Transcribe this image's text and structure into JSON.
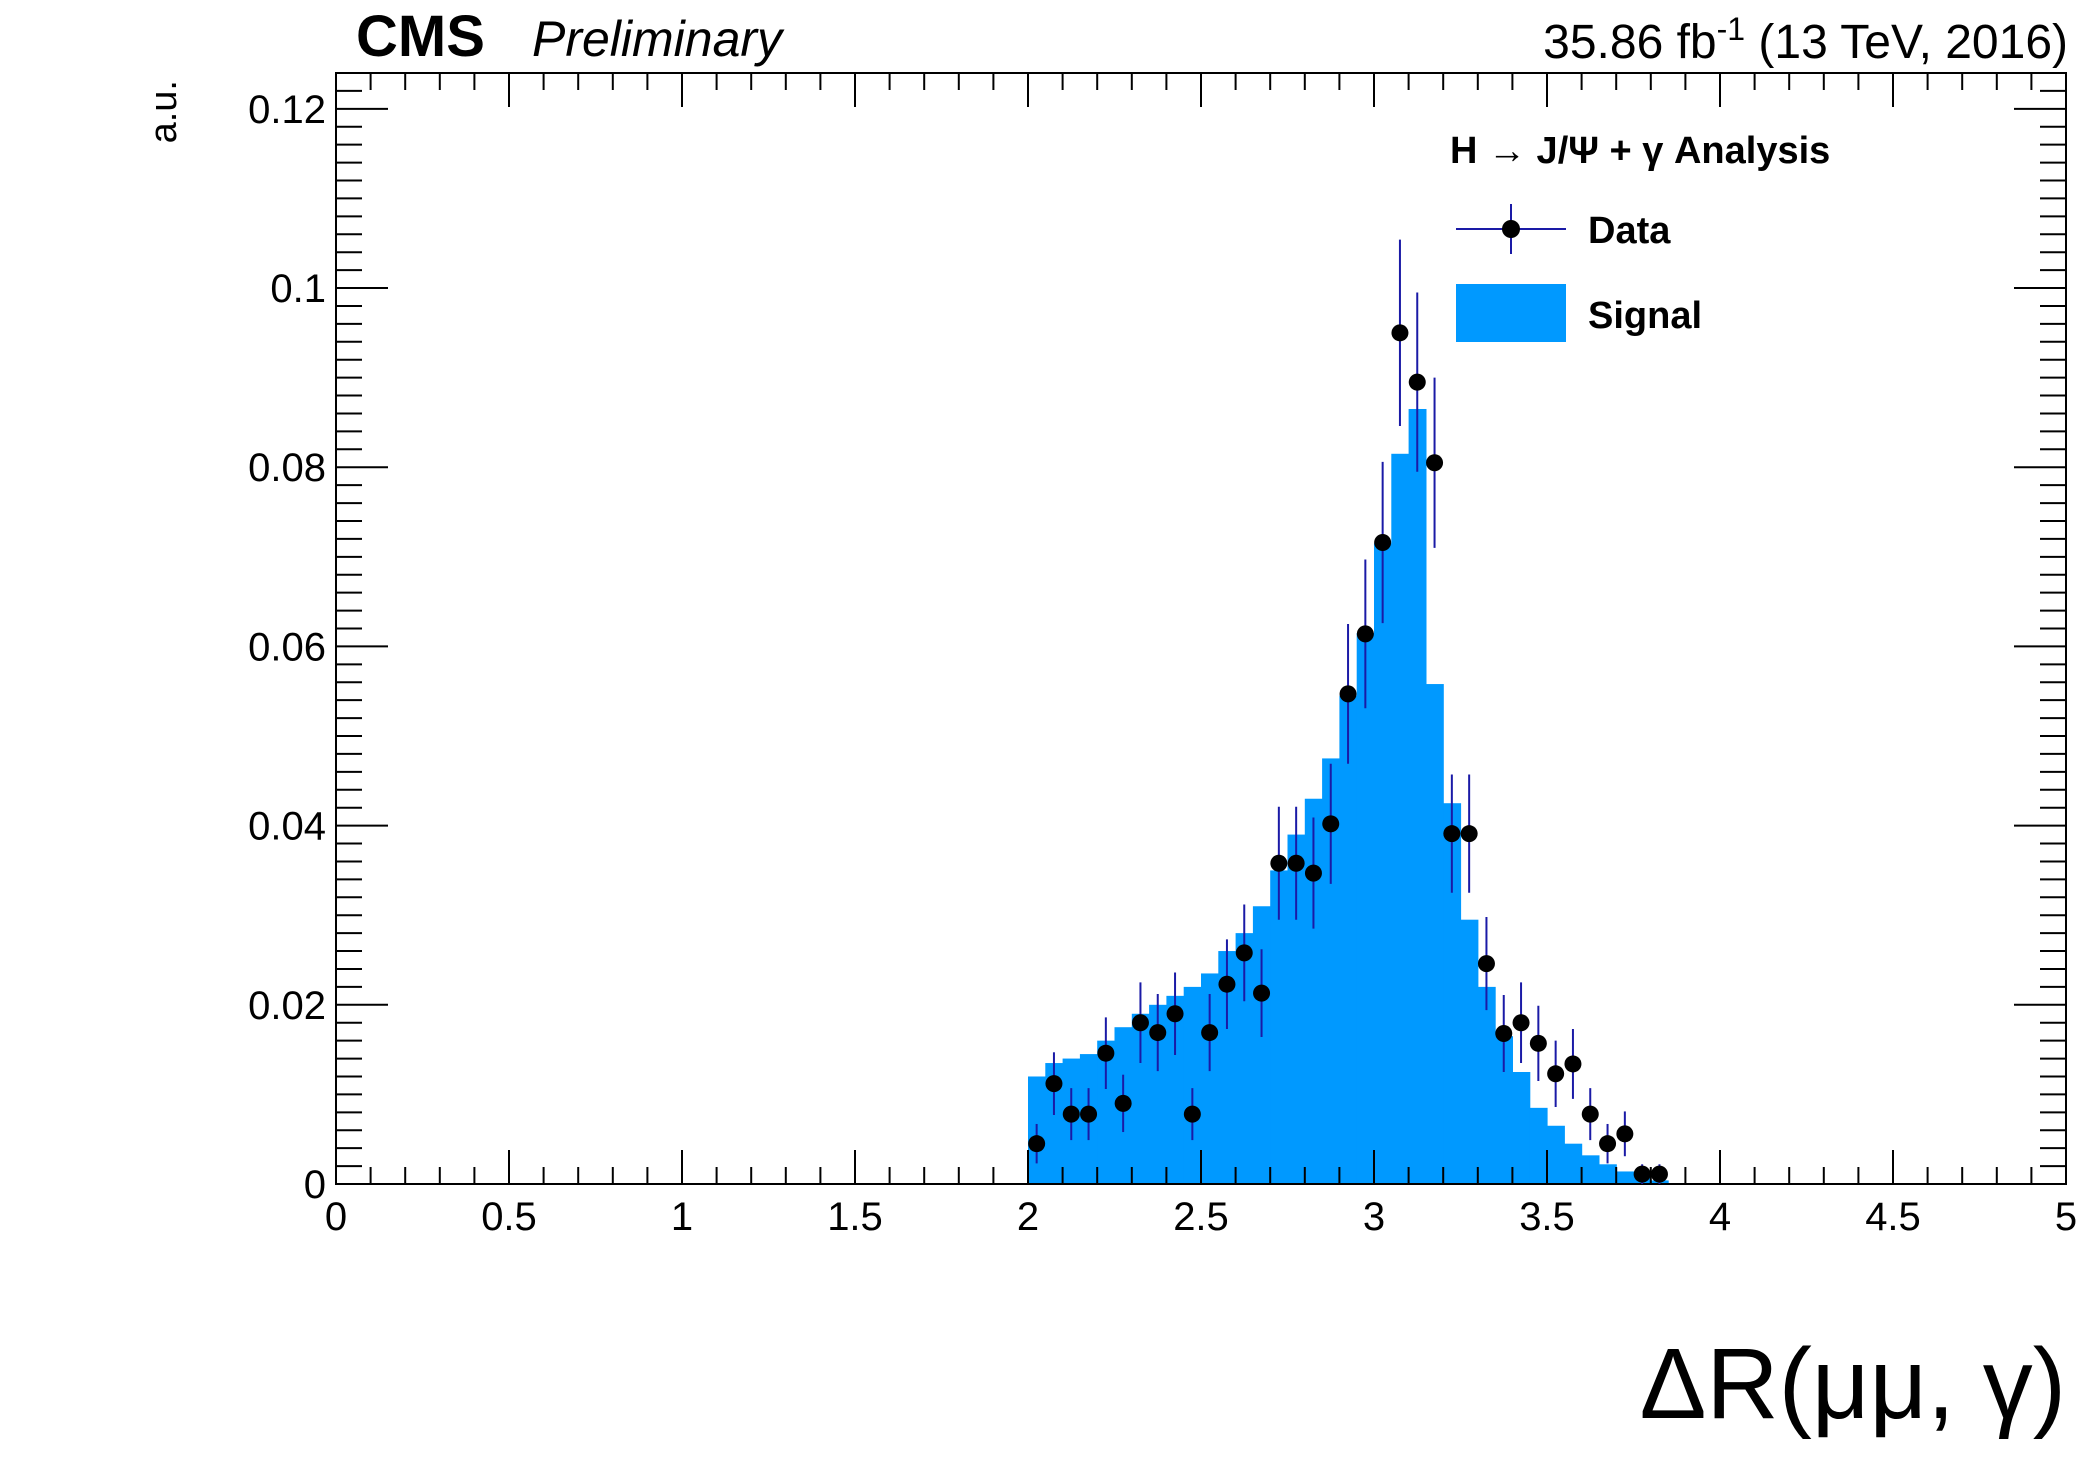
{
  "header": {
    "experiment": "CMS",
    "status": "Preliminary",
    "lumi_value": "35.86 fb",
    "lumi_exp": "-1",
    "lumi_rest": " (13 TeV, 2016)"
  },
  "colors": {
    "signal_fill": "#0099ff",
    "data_marker": "#000000",
    "error_bar": "#1a1aa6",
    "axis": "#000000"
  },
  "chart_data": {
    "type": "bar",
    "title": "",
    "xlabel": "ΔR(μμ, γ)",
    "ylabel": "a.u.",
    "xlim": [
      0,
      5
    ],
    "ylim": [
      0,
      0.124
    ],
    "x_ticks": [
      "0",
      "0.5",
      "1",
      "1.5",
      "2",
      "2.5",
      "3",
      "3.5",
      "4",
      "4.5",
      "5"
    ],
    "y_ticks": [
      "0",
      "0.02",
      "0.04",
      "0.06",
      "0.08",
      "0.1",
      "0.12"
    ],
    "legend": {
      "title": "H → J/Ψ + γ Analysis",
      "position": "top-right",
      "entries": [
        "Data",
        "Signal"
      ]
    },
    "bin_width": 0.05,
    "series": [
      {
        "name": "Signal",
        "style": "filled-histogram",
        "bin_low_edges": [
          2.0,
          2.05,
          2.1,
          2.15,
          2.2,
          2.25,
          2.3,
          2.35,
          2.4,
          2.45,
          2.5,
          2.55,
          2.6,
          2.65,
          2.7,
          2.75,
          2.8,
          2.85,
          2.9,
          2.95,
          3.0,
          3.05,
          3.1,
          3.15,
          3.2,
          3.25,
          3.3,
          3.35,
          3.4,
          3.45,
          3.5,
          3.55,
          3.6,
          3.65,
          3.7,
          3.75,
          3.8
        ],
        "values": [
          0.012,
          0.0135,
          0.014,
          0.0145,
          0.016,
          0.0175,
          0.019,
          0.02,
          0.021,
          0.022,
          0.0235,
          0.026,
          0.028,
          0.031,
          0.035,
          0.039,
          0.043,
          0.0475,
          0.0545,
          0.0615,
          0.0715,
          0.0815,
          0.0865,
          0.0558,
          0.0425,
          0.0295,
          0.022,
          0.0165,
          0.0125,
          0.0085,
          0.0065,
          0.0045,
          0.0032,
          0.0022,
          0.0014,
          0.0008,
          0.0004
        ]
      },
      {
        "name": "Data",
        "style": "points-with-errors",
        "x": [
          2.025,
          2.075,
          2.125,
          2.175,
          2.225,
          2.275,
          2.325,
          2.375,
          2.425,
          2.475,
          2.525,
          2.575,
          2.625,
          2.675,
          2.725,
          2.775,
          2.825,
          2.875,
          2.925,
          2.975,
          3.025,
          3.075,
          3.125,
          3.175,
          3.225,
          3.275,
          3.325,
          3.375,
          3.425,
          3.475,
          3.525,
          3.575,
          3.625,
          3.675,
          3.725,
          3.775,
          3.825
        ],
        "y": [
          0.0045,
          0.0112,
          0.0078,
          0.0078,
          0.0146,
          0.009,
          0.018,
          0.0169,
          0.019,
          0.0078,
          0.0169,
          0.0223,
          0.0258,
          0.0213,
          0.0358,
          0.0358,
          0.0347,
          0.0402,
          0.0547,
          0.0614,
          0.0716,
          0.095,
          0.0895,
          0.0805,
          0.0391,
          0.0391,
          0.0246,
          0.0168,
          0.018,
          0.0157,
          0.0123,
          0.0134,
          0.0078,
          0.0045,
          0.0056,
          0.0011,
          0.0011
        ],
        "yerr": [
          0.0022,
          0.0035,
          0.0029,
          0.0029,
          0.004,
          0.0032,
          0.0045,
          0.0043,
          0.0046,
          0.0029,
          0.0043,
          0.005,
          0.0054,
          0.0049,
          0.0063,
          0.0063,
          0.0062,
          0.0067,
          0.0078,
          0.0083,
          0.009,
          0.0104,
          0.01,
          0.0095,
          0.0066,
          0.0066,
          0.0052,
          0.0043,
          0.0045,
          0.0042,
          0.0037,
          0.0039,
          0.0029,
          0.0022,
          0.0025,
          0.0011,
          0.0011
        ]
      }
    ]
  }
}
